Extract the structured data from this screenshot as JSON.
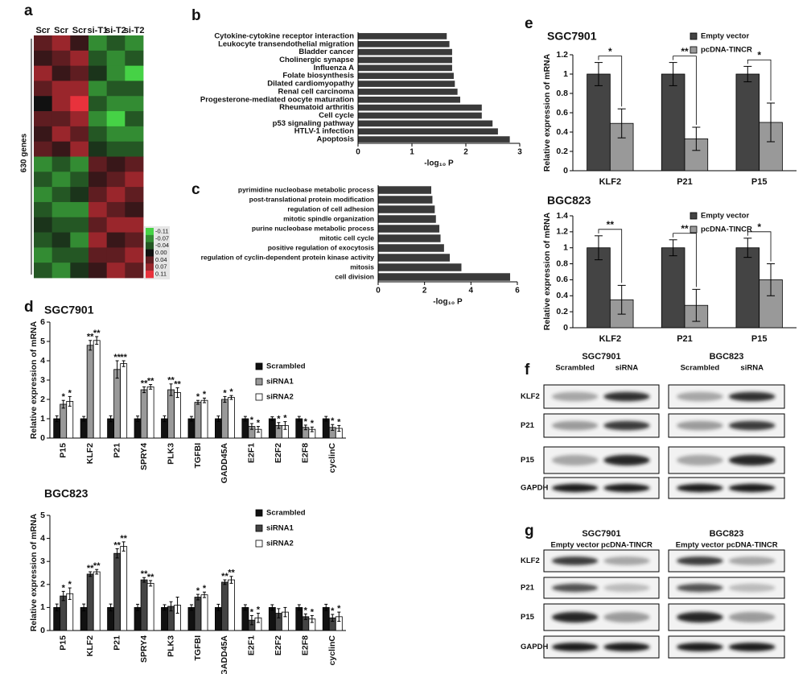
{
  "chart_data": [
    {
      "type": "heatmap",
      "panel": "a",
      "ylabel": "630 genes",
      "columns": [
        "Scr",
        "Scr",
        "Scr",
        "si-T1",
        "si-T2",
        "si-T2"
      ],
      "matrix": [
        [
          0.04,
          0.07,
          0.02,
          -0.07,
          -0.04,
          -0.07
        ],
        [
          0.02,
          0.04,
          0.07,
          -0.04,
          -0.07,
          -0.04
        ],
        [
          0.07,
          0.02,
          0.04,
          -0.02,
          -0.07,
          -0.11
        ],
        [
          0.04,
          0.07,
          0.07,
          -0.07,
          -0.04,
          -0.04
        ],
        [
          0.0,
          0.07,
          0.11,
          -0.04,
          -0.07,
          -0.07
        ],
        [
          0.04,
          0.04,
          0.07,
          -0.07,
          -0.11,
          -0.04
        ],
        [
          0.02,
          0.07,
          0.04,
          -0.04,
          -0.07,
          -0.07
        ],
        [
          0.04,
          0.02,
          0.07,
          -0.02,
          -0.04,
          -0.04
        ],
        [
          -0.07,
          -0.04,
          -0.07,
          0.04,
          0.02,
          0.04
        ],
        [
          -0.04,
          -0.07,
          -0.04,
          0.02,
          0.04,
          0.07
        ],
        [
          -0.07,
          -0.04,
          -0.02,
          0.04,
          0.07,
          0.04
        ],
        [
          -0.04,
          -0.07,
          -0.07,
          0.07,
          0.04,
          0.02
        ],
        [
          -0.02,
          -0.04,
          -0.04,
          0.04,
          0.07,
          0.07
        ],
        [
          -0.04,
          -0.02,
          -0.07,
          0.07,
          0.02,
          0.04
        ],
        [
          -0.07,
          -0.04,
          -0.04,
          0.04,
          0.04,
          0.07
        ],
        [
          -0.04,
          -0.07,
          -0.02,
          0.02,
          0.07,
          0.04
        ]
      ],
      "zlim": [
        -0.11,
        0.11
      ],
      "colors": {
        "low": "#46d246",
        "mid": "#111111",
        "high": "#e8323c"
      },
      "colorbar_ticks": [
        -0.11,
        -0.07,
        -0.04,
        {
          "value": 0,
          "label": "0.00"
        },
        0.04,
        0.07,
        0.11
      ]
    },
    {
      "type": "barh",
      "panel": "b",
      "xlabel": "-log₁₀ P",
      "color": "#3a3a3a",
      "categories": [
        "Cytokine-cytokine receptor interaction",
        "Leukocyte transendothelial migration",
        "Bladder cancer",
        "Cholinergic synapse",
        "Influenza A",
        "Folate biosynthesis",
        "Dilated cardiomyopathy",
        "Renal cell carcinoma",
        "Progesterone-mediated oocyte maturation",
        "Rheumatoid arthritis",
        "Cell cycle",
        "p53 signaling pathway",
        "HTLV-1 infection",
        "Apoptosis"
      ],
      "values": [
        1.65,
        1.7,
        1.75,
        1.75,
        1.75,
        1.78,
        1.8,
        1.85,
        1.9,
        2.3,
        2.3,
        2.5,
        2.6,
        2.82
      ],
      "xlim": [
        0,
        3
      ],
      "xticks": [
        0,
        1,
        2,
        3
      ]
    },
    {
      "type": "barh",
      "panel": "c",
      "xlabel": "-log₁₀ P",
      "color": "#3a3a3a",
      "categories": [
        "pyrimidine nucleobase metabolic process",
        "post-translational protein modification",
        "regulation of cell adhesion",
        "mitotic spindle organization",
        "purine nucleobase metabolic process",
        "mitotic cell cycle",
        "positive regulation of exocytosis",
        "regulation of cyclin-dependent protein kinase activity",
        "mitosis",
        "cell division"
      ],
      "values": [
        2.3,
        2.35,
        2.45,
        2.5,
        2.65,
        2.7,
        2.85,
        3.1,
        3.6,
        5.7
      ],
      "xlim": [
        0,
        6
      ],
      "xticks": [
        0,
        2,
        4,
        6
      ]
    },
    {
      "type": "bar",
      "panel": "d",
      "title": "SGC7901",
      "ylabel": "Relative expression of mRNA",
      "categories": [
        "P15",
        "KLF2",
        "P21",
        "SPRY4",
        "PLK3",
        "TGFBI",
        "GADD45A",
        "E2F1",
        "E2F2",
        "E2F8",
        "cyclinC"
      ],
      "series": [
        {
          "name": "Scrambled",
          "color": "#111111",
          "values": [
            1,
            1,
            1,
            1,
            1,
            1,
            1,
            1,
            1,
            1,
            1
          ],
          "errors": [
            0.15,
            0.12,
            0.15,
            0.14,
            0.15,
            0.12,
            0.14,
            0.12,
            0.1,
            0.12,
            0.12
          ]
        },
        {
          "name": "siRNA1",
          "color": "#999999",
          "values": [
            1.75,
            4.8,
            3.55,
            2.5,
            2.5,
            1.85,
            2.0,
            0.6,
            0.65,
            0.55,
            0.55
          ],
          "errors": [
            0.2,
            0.25,
            0.45,
            0.15,
            0.3,
            0.1,
            0.15,
            0.15,
            0.15,
            0.12,
            0.15
          ],
          "stars": [
            "*",
            "**",
            "**",
            "**",
            "**",
            "*",
            "*",
            "*",
            "*",
            "*",
            "*"
          ]
        },
        {
          "name": "siRNA2",
          "color": "#ffffff",
          "values": [
            1.9,
            5.05,
            3.85,
            2.65,
            2.35,
            1.95,
            2.1,
            0.45,
            0.65,
            0.45,
            0.5
          ],
          "errors": [
            0.25,
            0.2,
            0.15,
            0.12,
            0.25,
            0.12,
            0.1,
            0.15,
            0.2,
            0.12,
            0.15
          ],
          "stars": [
            "*",
            "**",
            "**",
            "**",
            "**",
            "*",
            "*",
            "*",
            "*",
            "*",
            "*"
          ]
        }
      ],
      "ylim": [
        0,
        6
      ],
      "yticks": [
        0,
        1,
        2,
        3,
        4,
        5,
        6
      ]
    },
    {
      "type": "bar",
      "title": "BGC823",
      "ylabel": "Relative expression of mRNA",
      "categories": [
        "P15",
        "KLF2",
        "P21",
        "SPRY4",
        "PLK3",
        "TGFBI",
        "GADD45A",
        "E2F1",
        "E2F2",
        "E2F8",
        "cyclinC"
      ],
      "series": [
        {
          "name": "Scrambled",
          "color": "#111111",
          "values": [
            1,
            1,
            1,
            1,
            1,
            1,
            1,
            1,
            1,
            1,
            1
          ],
          "errors": [
            0.15,
            0.15,
            0.15,
            0.14,
            0.12,
            0.12,
            0.14,
            0.12,
            0.12,
            0.12,
            0.14
          ]
        },
        {
          "name": "siRNA1",
          "color": "#444444",
          "values": [
            1.5,
            2.45,
            3.35,
            2.2,
            1.05,
            1.45,
            2.1,
            0.45,
            0.75,
            0.6,
            0.55
          ],
          "errors": [
            0.2,
            0.1,
            0.2,
            0.1,
            0.2,
            0.12,
            0.1,
            0.2,
            0.2,
            0.12,
            0.15
          ],
          "stars": [
            "*",
            "**",
            "**",
            "**",
            null,
            "*",
            "**",
            "*",
            null,
            "*",
            "*"
          ]
        },
        {
          "name": "siRNA2",
          "color": "#ffffff",
          "values": [
            1.6,
            2.55,
            3.65,
            2.05,
            1.1,
            1.55,
            2.2,
            0.55,
            0.8,
            0.5,
            0.6
          ],
          "errors": [
            0.25,
            0.1,
            0.2,
            0.12,
            0.35,
            0.12,
            0.15,
            0.2,
            0.2,
            0.15,
            0.2
          ],
          "stars": [
            "*",
            "**",
            "**",
            "**",
            null,
            "*",
            "**",
            "*",
            null,
            "*",
            "*"
          ]
        }
      ],
      "ylim": [
        0,
        5
      ],
      "yticks": [
        0,
        1,
        2,
        3,
        4,
        5
      ]
    },
    {
      "type": "bar",
      "panel": "e",
      "title": "SGC7901",
      "ylabel": "Relative expression of mRNA",
      "categories": [
        "KLF2",
        "P21",
        "P15"
      ],
      "series": [
        {
          "name": "Empty vector",
          "color": "#444444",
          "values": [
            1,
            1,
            1
          ],
          "errors": [
            0.12,
            0.12,
            0.08
          ]
        },
        {
          "name": "pcDNA-TINCR",
          "color": "#999999",
          "values": [
            0.49,
            0.33,
            0.5
          ],
          "errors": [
            0.15,
            0.12,
            0.2
          ]
        }
      ],
      "brackets": [
        "*",
        "**",
        "*"
      ],
      "ylim": [
        0,
        1.2
      ],
      "yticks": [
        0,
        0.2,
        0.4,
        0.6,
        0.8,
        1,
        1.2
      ]
    },
    {
      "type": "bar",
      "title": "BGC823",
      "ylabel": "Relative expression of mRNA",
      "categories": [
        "KLF2",
        "P21",
        "P15"
      ],
      "series": [
        {
          "name": "Empty vector",
          "color": "#444444",
          "values": [
            1,
            1,
            1
          ],
          "errors": [
            0.15,
            0.1,
            0.12
          ]
        },
        {
          "name": "pcDNA-TINCR",
          "color": "#999999",
          "values": [
            0.35,
            0.28,
            0.6
          ],
          "errors": [
            0.18,
            0.2,
            0.2
          ]
        }
      ],
      "brackets": [
        "**",
        "**",
        "*"
      ],
      "ylim": [
        0,
        1.4
      ],
      "yticks": [
        0,
        0.2,
        0.4,
        0.6,
        0.8,
        1,
        1.2,
        1.4
      ]
    }
  ],
  "blots": [
    {
      "panel": "f",
      "cell_lines": [
        "SGC7901",
        "BGC823"
      ],
      "conditions": [
        "Scrambled",
        "siRNA",
        "Scrambled",
        "siRNA"
      ],
      "rows": [
        "KLF2",
        "P21",
        "P15",
        "GAPDH"
      ]
    },
    {
      "panel": "g",
      "cell_lines": [
        "SGC7901",
        "BGC823"
      ],
      "conditions": [
        "Empty vector",
        "pcDNA-TINCR",
        "Empty vector",
        "pcDNA-TINCR"
      ],
      "rows": [
        "KLF2",
        "P21",
        "P15",
        "GAPDH"
      ]
    }
  ]
}
